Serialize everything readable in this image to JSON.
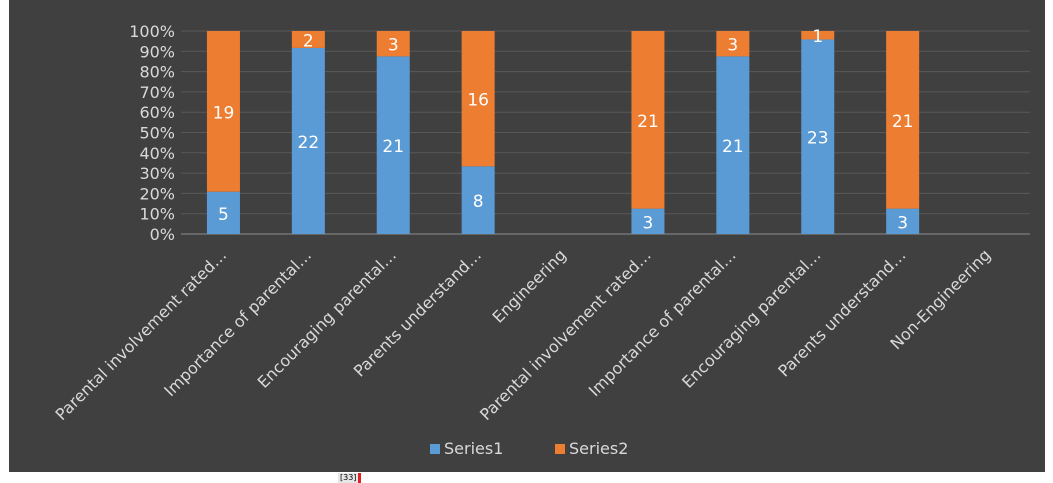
{
  "chart_data": {
    "type": "bar",
    "stacking": "percent",
    "categories": [
      "Parental involvement rated…",
      "Importance of parental…",
      "Encouraging parental…",
      "Parents understand…",
      "Engineering",
      "Parental involvement rated…",
      "Importance of parental…",
      "Encouraging parental…",
      "Parents understand…",
      "Non-Engineering"
    ],
    "series": [
      {
        "name": "Series1",
        "values": [
          5,
          22,
          21,
          8,
          null,
          3,
          21,
          23,
          3,
          null
        ]
      },
      {
        "name": "Series2",
        "values": [
          19,
          2,
          3,
          16,
          null,
          21,
          3,
          1,
          21,
          null
        ]
      }
    ],
    "y_ticks": [
      "0%",
      "10%",
      "20%",
      "30%",
      "40%",
      "50%",
      "60%",
      "70%",
      "80%",
      "90%",
      "100%"
    ],
    "ylim": [
      0,
      100
    ],
    "grid": true,
    "legend_position": "bottom",
    "data_labels": true
  },
  "colors": {
    "background": "#404040",
    "Series1": "#5b9bd5",
    "Series2": "#ed7d31",
    "text": "#d9d9d9",
    "data_label": "#ffffff",
    "gridline": "#595959"
  },
  "footer_mark": "[33]"
}
